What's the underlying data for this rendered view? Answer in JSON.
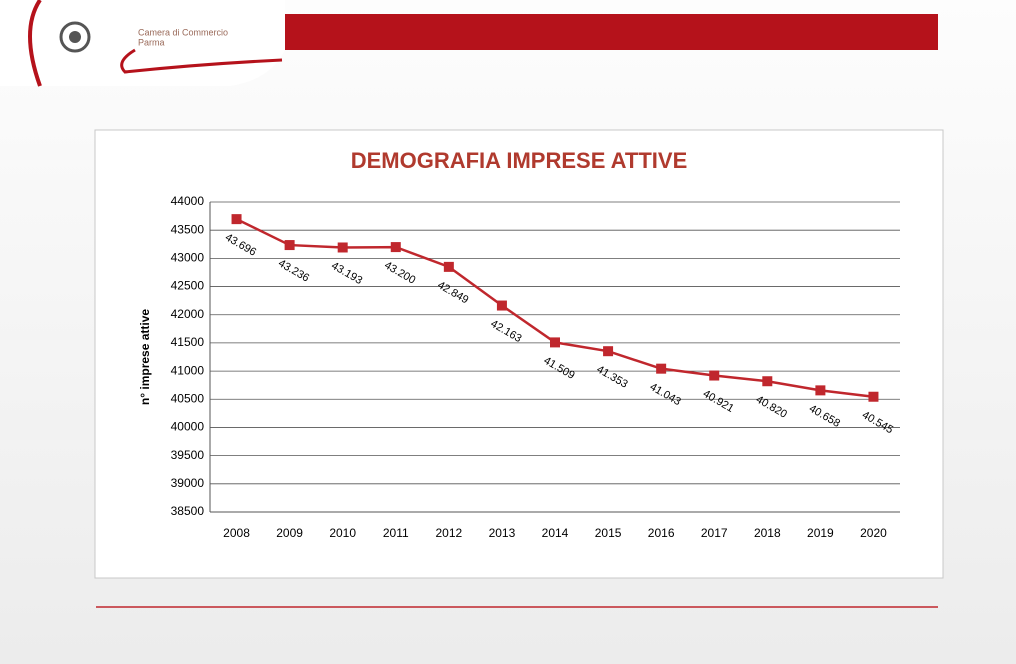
{
  "header": {
    "line1": "Camera di Commercio",
    "line2": "Parma"
  },
  "chart_data": {
    "type": "line",
    "title": "DEMOGRAFIA IMPRESE ATTIVE",
    "y_label": "n° imprese attive",
    "categories": [
      "2008",
      "2009",
      "2010",
      "2011",
      "2012",
      "2013",
      "2014",
      "2015",
      "2016",
      "2017",
      "2018",
      "2019",
      "2020"
    ],
    "series": [
      {
        "name": "Imprese attive",
        "color": "#c0272d",
        "values": [
          43696,
          43236,
          43193,
          43200,
          42849,
          42163,
          41509,
          41353,
          41043,
          40921,
          40820,
          40658,
          40545
        ],
        "value_labels": [
          "43.696",
          "43.236",
          "43.193",
          "43.200",
          "42.849",
          "42.163",
          "41.509",
          "41.353",
          "41.043",
          "40.921",
          "40.820",
          "40.658",
          "40.545"
        ]
      }
    ],
    "ylim": [
      38500,
      44000
    ],
    "yticks": [
      38500,
      39000,
      39500,
      40000,
      40500,
      41000,
      41500,
      42000,
      42500,
      43000,
      43500,
      44000
    ],
    "grid": true
  }
}
